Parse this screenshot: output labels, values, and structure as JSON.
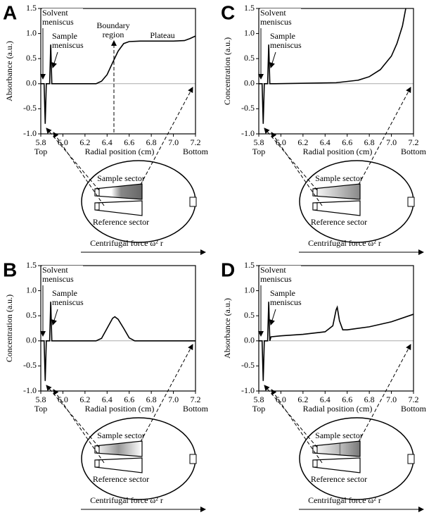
{
  "chart_data": [
    {
      "type": "line",
      "label": "A",
      "ylabel": "Absorbance (a.u.)",
      "xlabel": "Radial position (cm)",
      "x_start_label": "Top",
      "x_end_label": "Bottom",
      "annotations": [
        "Solvent meniscus",
        "Sample meniscus",
        "Boundary region",
        "Plateau"
      ],
      "diagram": {
        "sample": "Sample sector",
        "reference": "Reference sector",
        "force": "Centrifugal force ω² r"
      },
      "x": [
        5.8,
        5.83,
        5.84,
        5.85,
        5.88,
        5.89,
        5.9,
        5.95,
        6.3,
        6.35,
        6.4,
        6.45,
        6.5,
        6.55,
        6.6,
        6.7,
        7.0,
        7.1,
        7.15,
        7.2
      ],
      "series": [
        {
          "color": "#000000",
          "values": [
            0,
            0,
            -0.8,
            0,
            0,
            0.78,
            0,
            0,
            0,
            0.05,
            0.18,
            0.42,
            0.65,
            0.8,
            0.84,
            0.85,
            0.85,
            0.86,
            0.9,
            0.95
          ]
        }
      ],
      "xlim": [
        5.8,
        7.2
      ],
      "ylim": [
        -1,
        1.5
      ],
      "xticks": [
        5.8,
        {
          "value": 6,
          "label": "6.0"
        },
        6.2,
        6.4,
        6.6,
        6.8,
        {
          "value": 7,
          "label": "7.0"
        },
        7.2
      ],
      "yticks": [
        {
          "value": -1,
          "label": "-1.0"
        },
        -0.5,
        {
          "value": 0,
          "label": "0.0"
        },
        0.5,
        {
          "value": 1,
          "label": "1.0"
        },
        1.5
      ]
    },
    {
      "type": "line",
      "label": "B",
      "ylabel": "Concentration (a.u.)",
      "xlabel": "Radial position (cm)",
      "x_start_label": "Top",
      "x_end_label": "Bottom",
      "annotations": [
        "Solvent meniscus",
        "Sample meniscus"
      ],
      "diagram": {
        "sample": "Sample sector",
        "reference": "Reference sector",
        "force": "Centrifugal force ω² r"
      },
      "x": [
        5.8,
        5.83,
        5.84,
        5.85,
        5.88,
        5.89,
        5.9,
        5.95,
        6.3,
        6.35,
        6.4,
        6.45,
        6.47,
        6.5,
        6.55,
        6.6,
        6.65,
        7.2
      ],
      "series": [
        {
          "color": "#000000",
          "values": [
            0,
            0,
            -0.8,
            0,
            0,
            0.78,
            0,
            0,
            0,
            0.05,
            0.25,
            0.45,
            0.48,
            0.43,
            0.25,
            0.06,
            0,
            0
          ]
        }
      ],
      "xlim": [
        5.8,
        7.2
      ],
      "ylim": [
        -1,
        1.5
      ],
      "xticks": [
        5.8,
        {
          "value": 6,
          "label": "6.0"
        },
        6.2,
        6.4,
        6.6,
        6.8,
        {
          "value": 7,
          "label": "7.0"
        },
        7.2
      ],
      "yticks": [
        {
          "value": -1,
          "label": "-1.0"
        },
        -0.5,
        {
          "value": 0,
          "label": "0.0"
        },
        0.5,
        {
          "value": 1,
          "label": "1.0"
        },
        1.5
      ]
    },
    {
      "type": "line",
      "label": "C",
      "ylabel": "Concentration (a.u.)",
      "xlabel": "Radial position (cm)",
      "x_start_label": "Top",
      "x_end_label": "Bottom",
      "annotations": [
        "Solvent meniscus",
        "Sample meniscus"
      ],
      "diagram": {
        "sample": "Sample sector",
        "reference": "Reference sector",
        "force": "Centrifugal force ω² r"
      },
      "x": [
        5.8,
        5.83,
        5.84,
        5.85,
        5.88,
        5.89,
        5.9,
        5.95,
        6.5,
        6.7,
        6.8,
        6.9,
        7.0,
        7.05,
        7.1,
        7.13
      ],
      "series": [
        {
          "color": "#000000",
          "values": [
            0,
            0,
            -0.8,
            0,
            0,
            0.78,
            0,
            0,
            0.02,
            0.07,
            0.14,
            0.28,
            0.55,
            0.8,
            1.15,
            1.5
          ]
        }
      ],
      "xlim": [
        5.8,
        7.2
      ],
      "ylim": [
        -1,
        1.5
      ],
      "xticks": [
        5.8,
        {
          "value": 6,
          "label": "6.0"
        },
        6.2,
        6.4,
        6.6,
        6.8,
        {
          "value": 7,
          "label": "7.0"
        },
        7.2
      ],
      "yticks": [
        {
          "value": -1,
          "label": "-1.0"
        },
        -0.5,
        {
          "value": 0,
          "label": "0.0"
        },
        0.5,
        {
          "value": 1,
          "label": "1.0"
        },
        1.5
      ]
    },
    {
      "type": "line",
      "label": "D",
      "ylabel": "Absorbance (a.u.)",
      "xlabel": "Radial position (cm)",
      "x_start_label": "Top",
      "x_end_label": "Bottom",
      "annotations": [
        "Solvent meniscus",
        "Sample meniscus"
      ],
      "diagram": {
        "sample": "Sample sector",
        "reference": "Reference sector",
        "force": "Centrifugal force ω² r"
      },
      "x": [
        5.8,
        5.83,
        5.84,
        5.85,
        5.88,
        5.89,
        5.9,
        5.91,
        6.0,
        6.2,
        6.4,
        6.47,
        6.5,
        6.51,
        6.53,
        6.56,
        6.6,
        6.8,
        7.0,
        7.2
      ],
      "series": [
        {
          "color": "#000000",
          "values": [
            0,
            0,
            -0.8,
            0,
            0,
            0.78,
            0,
            0.08,
            0.1,
            0.13,
            0.18,
            0.3,
            0.62,
            0.67,
            0.4,
            0.22,
            0.22,
            0.28,
            0.38,
            0.53
          ]
        }
      ],
      "xlim": [
        5.8,
        7.2
      ],
      "ylim": [
        -1,
        1.5
      ],
      "xticks": [
        5.8,
        {
          "value": 6,
          "label": "6.0"
        },
        6.2,
        6.4,
        6.6,
        6.8,
        {
          "value": 7,
          "label": "7.0"
        },
        7.2
      ],
      "yticks": [
        {
          "value": -1,
          "label": "-1.0"
        },
        -0.5,
        {
          "value": 0,
          "label": "0.0"
        },
        0.5,
        {
          "value": 1,
          "label": "1.0"
        },
        1.5
      ]
    }
  ]
}
